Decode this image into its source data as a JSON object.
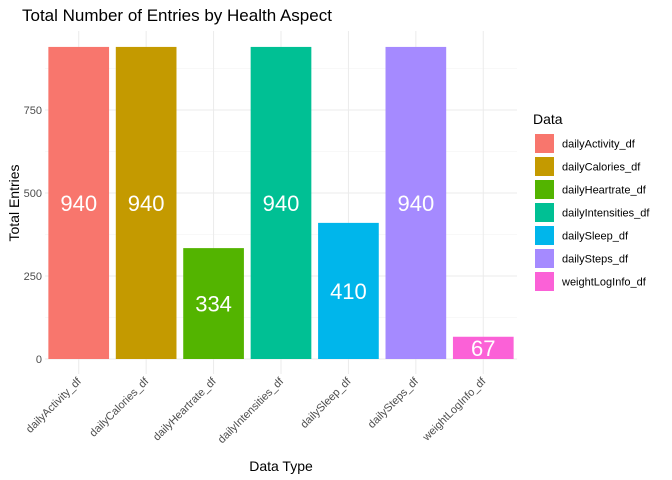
{
  "chart_data": {
    "type": "bar",
    "title": "Total Number of Entries by Health Aspect",
    "xlabel": "Data Type",
    "ylabel": "Total Entries",
    "categories": [
      "dailyActivity_df",
      "dailyCalories_df",
      "dailyHeartrate_df",
      "dailyIntensities_df",
      "dailySleep_df",
      "dailySteps_df",
      "weightLogInfo_df"
    ],
    "values": [
      940,
      940,
      334,
      940,
      410,
      940,
      67
    ],
    "colors": [
      "#F8766D",
      "#C49A00",
      "#53B400",
      "#00C094",
      "#00B6EB",
      "#A58AFF",
      "#FB61D7"
    ],
    "yticks": [
      0,
      250,
      500,
      750
    ],
    "ylim": [
      0,
      987
    ],
    "grid": true,
    "legend": {
      "title": "Data",
      "position": "right"
    }
  }
}
